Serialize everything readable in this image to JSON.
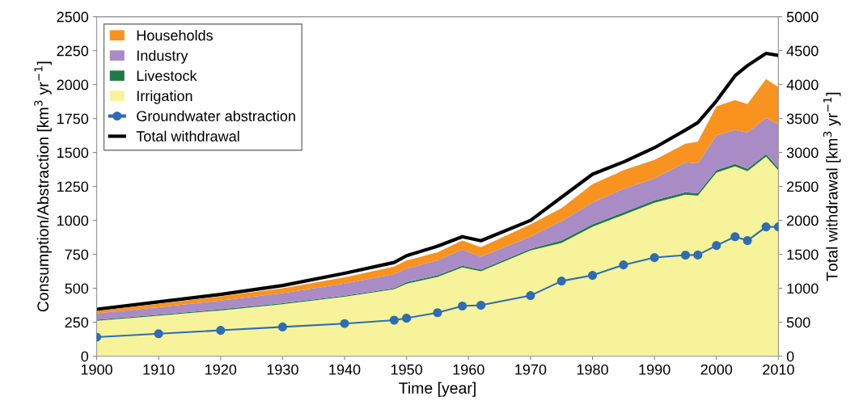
{
  "chart_data": {
    "type": "area",
    "stacked": true,
    "xlabel": "Time [year]",
    "ylabel": "Consumption/Abstraction [km$^{3}$ yr$^{−1}$]",
    "y2label": "Total withdrawal [km$^{3}$ yr$^{−1}$]",
    "x": [
      1900,
      1910,
      1920,
      1930,
      1940,
      1948,
      1950,
      1955,
      1959,
      1962,
      1970,
      1975,
      1980,
      1985,
      1990,
      1995,
      1997,
      2000,
      2003,
      2005,
      2008,
      2010
    ],
    "series": [
      {
        "name": "Irrigation",
        "color": "#f7f39a",
        "values": [
          260,
          297,
          337,
          382,
          437,
          492,
          533,
          583,
          654,
          625,
          779,
          833,
          952,
          1041,
          1130,
          1190,
          1182,
          1351,
          1398,
          1362,
          1469,
          1368
        ]
      },
      {
        "name": "Livestock",
        "color": "#1e7a45",
        "values": [
          8,
          8,
          8,
          8,
          8,
          8,
          12,
          12,
          12,
          12,
          12,
          18,
          18,
          18,
          18,
          18,
          18,
          18,
          18,
          18,
          18,
          18
        ]
      },
      {
        "name": "Industry",
        "color": "#a98cc6",
        "values": [
          47,
          55,
          65,
          75,
          90,
          105,
          100,
          110,
          119,
          95,
          89,
          143,
          161,
          173,
          161,
          220,
          220,
          256,
          250,
          268,
          268,
          322
        ]
      },
      {
        "name": "Households",
        "color": "#f7931e",
        "values": [
          18,
          25,
          30,
          35,
          45,
          55,
          60,
          60,
          66,
          71,
          90,
          95,
          136,
          137,
          137,
          137,
          160,
          215,
          220,
          208,
          286,
          273
        ]
      },
      {
        "name": "Groundwater abstraction",
        "type": "line",
        "marker": "circle",
        "color": "#2e6db4",
        "values": [
          140,
          165,
          190,
          215,
          240,
          265,
          280,
          320,
          369,
          375,
          446,
          553,
          595,
          672,
          726,
          744,
          745,
          815,
          880,
          851,
          952,
          952
        ]
      },
      {
        "name": "Total withdrawal",
        "type": "line",
        "axis": "y2",
        "color": "#000000",
        "values": [
          690,
          800,
          910,
          1040,
          1220,
          1380,
          1480,
          1620,
          1760,
          1700,
          2000,
          2340,
          2680,
          2860,
          3070,
          3330,
          3440,
          3760,
          4130,
          4280,
          4460,
          4430
        ]
      }
    ],
    "xlim": [
      1900,
      2010
    ],
    "xticks": [
      1900,
      1910,
      1920,
      1930,
      1940,
      1950,
      1960,
      1970,
      1980,
      1990,
      2000,
      2010
    ],
    "ylim": [
      0,
      2500
    ],
    "yticks": [
      0,
      250,
      500,
      750,
      1000,
      1250,
      1500,
      1750,
      2000,
      2250,
      2500
    ],
    "y2lim": [
      0,
      5000
    ],
    "y2ticks": [
      0,
      500,
      1000,
      1500,
      2000,
      2500,
      3000,
      3500,
      4000,
      4500,
      5000
    ],
    "legend": "top left",
    "grid": false
  }
}
